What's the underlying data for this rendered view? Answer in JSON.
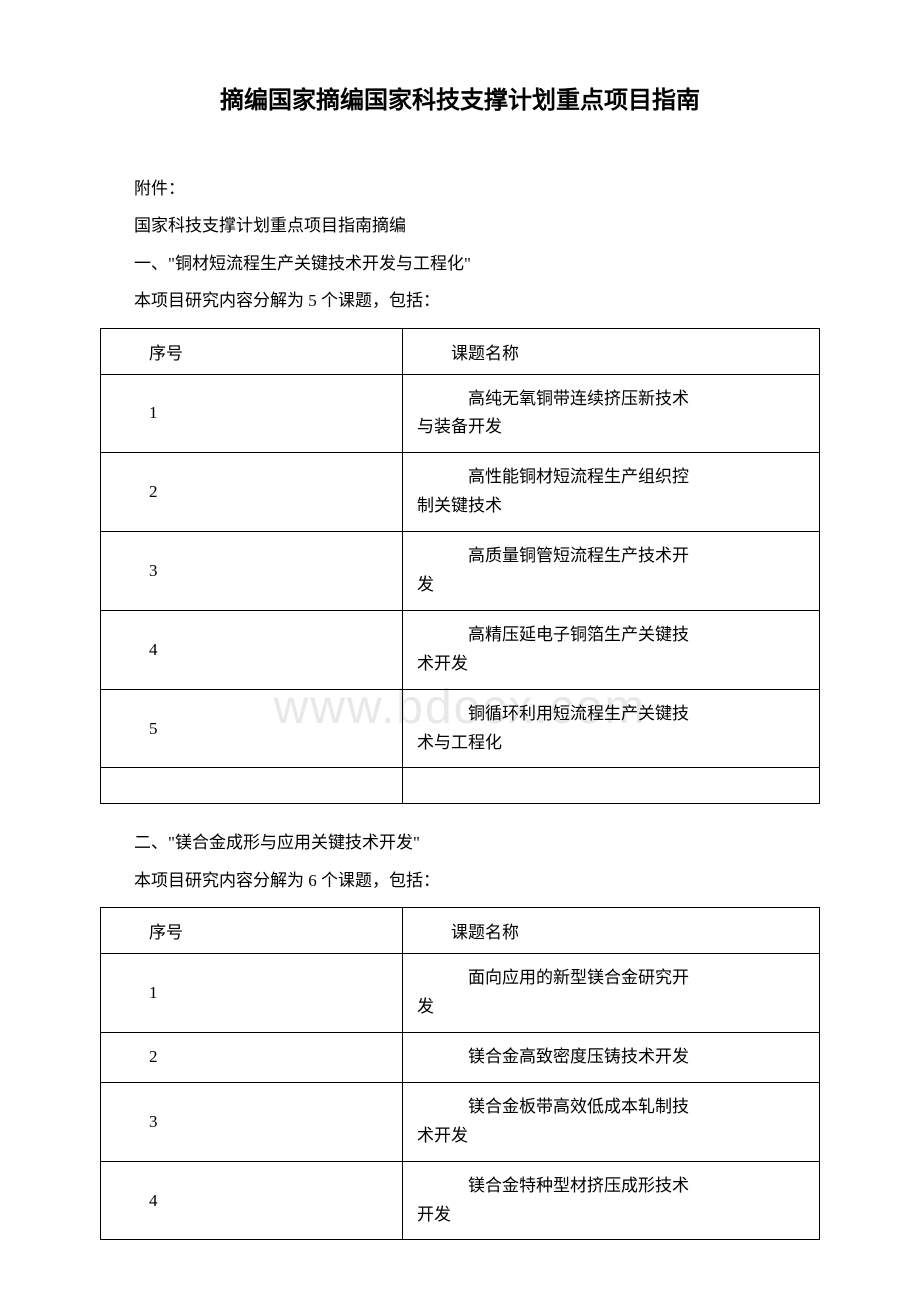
{
  "title": "摘编国家摘编国家科技支撑计划重点项目指南",
  "attachment_label": "附件：",
  "subtitle": "国家科技支撑计划重点项目指南摘编",
  "section1": {
    "heading": "一、\"铜材短流程生产关键技术开发与工程化\"",
    "intro": "本项目研究内容分解为 5 个课题，包括：",
    "col1_header": "序号",
    "col2_header": "课题名称",
    "rows": [
      {
        "num": "1",
        "topic_line1": "高纯无氧铜带连续挤压新技术",
        "topic_line2": "与装备开发"
      },
      {
        "num": "2",
        "topic_line1": "高性能铜材短流程生产组织控",
        "topic_line2": "制关键技术"
      },
      {
        "num": "3",
        "topic_line1": "高质量铜管短流程生产技术开",
        "topic_line2": "发"
      },
      {
        "num": "4",
        "topic_line1": "高精压延电子铜箔生产关键技",
        "topic_line2": "术开发"
      },
      {
        "num": "5",
        "topic_line1": "铜循环利用短流程生产关键技",
        "topic_line2": "术与工程化"
      }
    ]
  },
  "section2": {
    "heading": "二、\"镁合金成形与应用关键技术开发\"",
    "intro": "本项目研究内容分解为 6 个课题，包括：",
    "col1_header": "序号",
    "col2_header": "课题名称",
    "rows": [
      {
        "num": "1",
        "topic_line1": "面向应用的新型镁合金研究开",
        "topic_line2": "发"
      },
      {
        "num": "2",
        "topic_line1": "镁合金高致密度压铸技术开发",
        "topic_line2": ""
      },
      {
        "num": "3",
        "topic_line1": "镁合金板带高效低成本轧制技",
        "topic_line2": "术开发"
      },
      {
        "num": "4",
        "topic_line1": "镁合金特种型材挤压成形技术",
        "topic_line2": "开发"
      }
    ]
  },
  "watermark_text": "www.bdocx.com"
}
